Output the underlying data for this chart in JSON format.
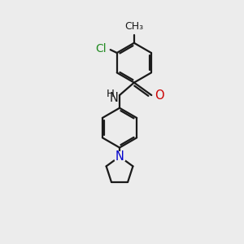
{
  "bg_color": "#ececec",
  "bond_color": "#1a1a1a",
  "bond_width": 1.6,
  "atom_colors": {
    "C": "#1a1a1a",
    "N_amide": "#1a1a1a",
    "N_pyrrole": "#0000cc",
    "O": "#cc0000",
    "Cl": "#228B22"
  },
  "font_size": 9.5,
  "figsize": [
    3.0,
    3.0
  ],
  "dpi": 100,
  "xlim": [
    0,
    10
  ],
  "ylim": [
    0,
    10
  ]
}
